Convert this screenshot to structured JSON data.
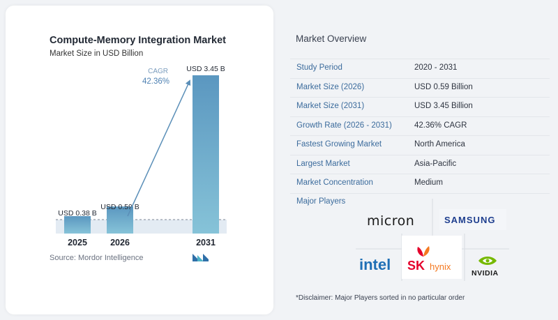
{
  "chart_data": {
    "type": "bar",
    "title": "Compute-Memory Integration Market",
    "subtitle": "Market Size in USD Billion",
    "categories": [
      "2025",
      "2026",
      "2031"
    ],
    "values": [
      0.38,
      0.59,
      3.45
    ],
    "data_labels": [
      "USD 0.38 B",
      "USD 0.59 B",
      "USD 3.45 B"
    ],
    "annotation": {
      "label": "CAGR",
      "value": "42.36%"
    },
    "grid": false,
    "colors": {
      "bar_top": "#5b97c0",
      "bar_bottom": "#86c3d8",
      "arrow": "#5b8fb8",
      "shade": "#e3ebf3"
    }
  },
  "source": {
    "text": "Source:  Mordor Intelligence"
  },
  "overview": {
    "title": "Market Overview",
    "rows": [
      {
        "label": "Study Period",
        "value": "2020 - 2031"
      },
      {
        "label": "Market Size (2026)",
        "value": "USD 0.59 Billion"
      },
      {
        "label": "Market Size (2031)",
        "value": "USD 3.45 Billion"
      },
      {
        "label": "Growth Rate (2026 - 2031)",
        "value": "42.36% CAGR"
      },
      {
        "label": "Fastest Growing Market",
        "value": "North America"
      },
      {
        "label": "Largest Market",
        "value": "Asia-Pacific"
      },
      {
        "label": "Market Concentration",
        "value": "Medium"
      }
    ]
  },
  "players": {
    "title": "Major Players",
    "logos": {
      "micron": "micron",
      "samsung": "SAMSUNG",
      "intel": "intel",
      "sk": "SK",
      "hynix": "hynix",
      "nvidia": "NVIDIA"
    }
  },
  "disclaimer": "*Disclaimer: Major Players sorted in no particular order",
  "accent_colors": {
    "label_blue": "#3b6b9c",
    "samsung_blue": "#1f3f8f",
    "intel_blue": "#1f6fb5",
    "sk_red": "#e4002b",
    "sk_orange": "#f47920",
    "nvidia_green": "#76b900"
  }
}
